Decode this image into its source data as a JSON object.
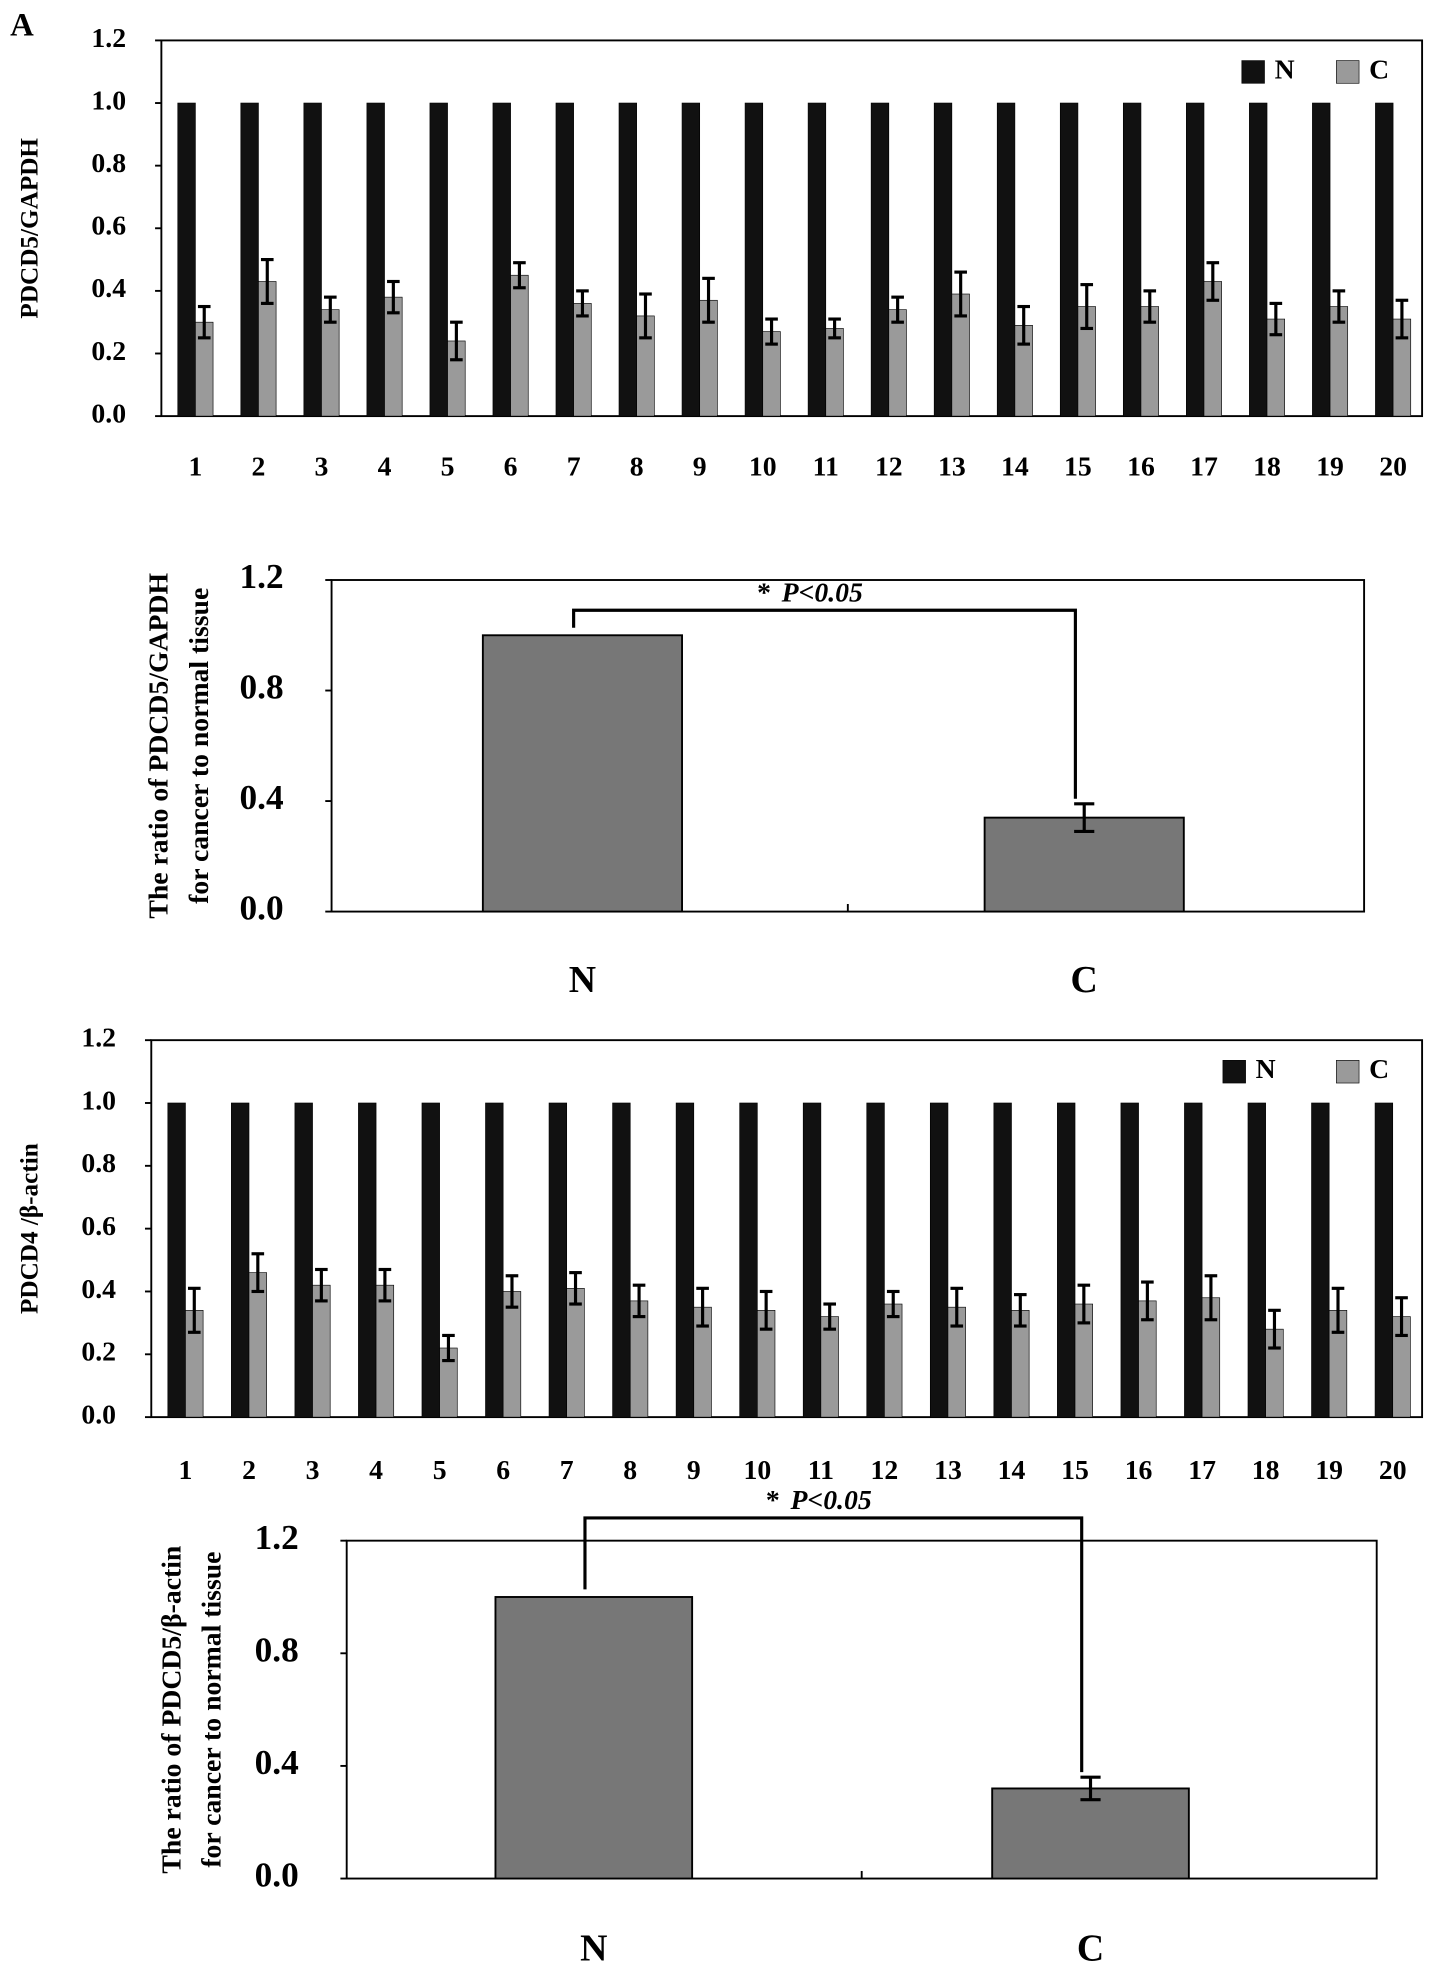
{
  "panel_label": "A",
  "chart_data": [
    {
      "type": "bar",
      "y_label": "PDCD5/GAPDH",
      "categories": [
        "1",
        "2",
        "3",
        "4",
        "5",
        "6",
        "7",
        "8",
        "9",
        "10",
        "11",
        "12",
        "13",
        "14",
        "15",
        "16",
        "17",
        "18",
        "19",
        "20"
      ],
      "series": [
        {
          "name": "N",
          "color": "#111111",
          "values": [
            1,
            1,
            1,
            1,
            1,
            1,
            1,
            1,
            1,
            1,
            1,
            1,
            1,
            1,
            1,
            1,
            1,
            1,
            1,
            1
          ]
        },
        {
          "name": "C",
          "color": "#9a9a9a",
          "values": [
            0.3,
            0.43,
            0.34,
            0.38,
            0.24,
            0.45,
            0.36,
            0.32,
            0.37,
            0.27,
            0.28,
            0.34,
            0.39,
            0.29,
            0.35,
            0.35,
            0.43,
            0.31,
            0.35,
            0.31
          ],
          "errors": [
            0.05,
            0.07,
            0.04,
            0.05,
            0.06,
            0.04,
            0.04,
            0.07,
            0.07,
            0.04,
            0.03,
            0.04,
            0.07,
            0.06,
            0.07,
            0.05,
            0.06,
            0.05,
            0.05,
            0.06
          ]
        }
      ],
      "ylim": [
        0,
        1.2
      ],
      "yticks": [
        {
          "value": 0,
          "label": "0.0"
        },
        0.2,
        0.4,
        0.6,
        0.8,
        {
          "value": 1,
          "label": "1.0"
        },
        1.2
      ],
      "legend": "top-right"
    },
    {
      "type": "bar",
      "y_label": [
        "The ratio of PDCD5/GAPDH",
        "for cancer to normal tissue"
      ],
      "categories": [
        "N",
        "C"
      ],
      "values": [
        1.0,
        0.34
      ],
      "errors": [
        null,
        0.05
      ],
      "color": "#777777",
      "ylim": [
        0,
        1.2
      ],
      "yticks": [
        {
          "value": 0,
          "label": "0.0"
        },
        0.4,
        0.8,
        1.2
      ],
      "annotation": {
        "star": "*",
        "text": "P<0.05"
      }
    },
    {
      "type": "bar",
      "y_label": "PDCD4 /β-actin",
      "categories": [
        "1",
        "2",
        "3",
        "4",
        "5",
        "6",
        "7",
        "8",
        "9",
        "10",
        "11",
        "12",
        "13",
        "14",
        "15",
        "16",
        "17",
        "18",
        "19",
        "20"
      ],
      "series": [
        {
          "name": "N",
          "color": "#111111",
          "values": [
            1,
            1,
            1,
            1,
            1,
            1,
            1,
            1,
            1,
            1,
            1,
            1,
            1,
            1,
            1,
            1,
            1,
            1,
            1,
            1
          ]
        },
        {
          "name": "C",
          "color": "#9a9a9a",
          "values": [
            0.34,
            0.46,
            0.42,
            0.42,
            0.22,
            0.4,
            0.41,
            0.37,
            0.35,
            0.34,
            0.32,
            0.36,
            0.35,
            0.34,
            0.36,
            0.37,
            0.38,
            0.28,
            0.34,
            0.32
          ],
          "errors": [
            0.07,
            0.06,
            0.05,
            0.05,
            0.04,
            0.05,
            0.05,
            0.05,
            0.06,
            0.06,
            0.04,
            0.04,
            0.06,
            0.05,
            0.06,
            0.06,
            0.07,
            0.06,
            0.07,
            0.06
          ]
        }
      ],
      "ylim": [
        0,
        1.2
      ],
      "yticks": [
        {
          "value": 0,
          "label": "0.0"
        },
        0.2,
        0.4,
        0.6,
        0.8,
        {
          "value": 1,
          "label": "1.0"
        },
        1.2
      ],
      "legend": "top-right"
    },
    {
      "type": "bar",
      "y_label": [
        "The ratio of PDCD5/β-actin",
        "for cancer to normal tissue"
      ],
      "categories": [
        "N",
        "C"
      ],
      "values": [
        1.0,
        0.32
      ],
      "errors": [
        null,
        0.04
      ],
      "color": "#777777",
      "ylim": [
        0,
        1.2
      ],
      "yticks": [
        {
          "value": 0,
          "label": "0.0"
        },
        0.4,
        0.8,
        1.2
      ],
      "annotation": {
        "star": "*",
        "text": "P<0.05"
      }
    }
  ]
}
